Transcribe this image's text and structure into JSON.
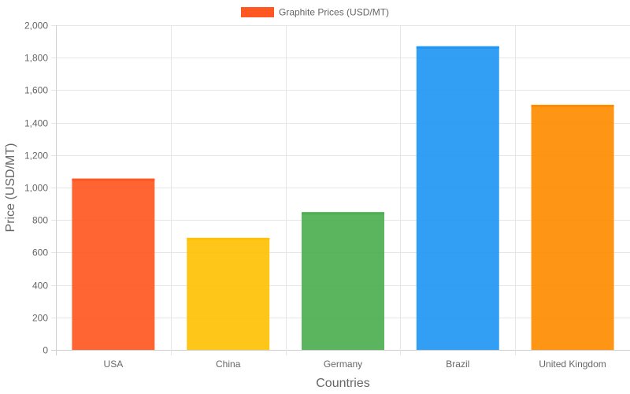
{
  "chart_data": {
    "type": "bar",
    "categories": [
      "USA",
      "China",
      "Germany",
      "Brazil",
      "United Kingdom"
    ],
    "series": [
      {
        "name": "Graphite Prices (USD/MT)",
        "values": [
          1055,
          690,
          848,
          1870,
          1510
        ]
      }
    ],
    "bar_colors": [
      "#ff5722",
      "#ffc107",
      "#4caf50",
      "#2196f3",
      "#ff8c00"
    ],
    "legend_color": "#ff5722",
    "xlabel": "Countries",
    "ylabel": "Price (USD/MT)",
    "ylim": [
      0,
      2000
    ],
    "yticks": [
      0,
      200,
      400,
      600,
      800,
      1000,
      1200,
      1400,
      1600,
      1800,
      2000
    ],
    "ytick_labels": [
      "0",
      "200",
      "400",
      "600",
      "800",
      "1,000",
      "1,200",
      "1,400",
      "1,600",
      "1,800",
      "2,000"
    ],
    "grid": true,
    "legend_position": "top-center"
  }
}
